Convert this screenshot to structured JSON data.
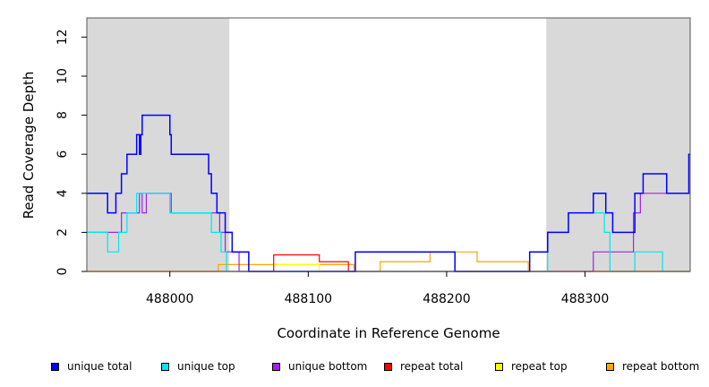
{
  "chart_data": {
    "type": "line",
    "title": "",
    "xlabel": "Coordinate in Reference Genome",
    "ylabel": "Read Coverage Depth",
    "xlim": [
      487940,
      488376
    ],
    "ylim": [
      0,
      13
    ],
    "x_ticks": [
      488000,
      488100,
      488200,
      488300
    ],
    "x_tick_labels": [
      "488000",
      "488100",
      "488200",
      "488300"
    ],
    "y_ticks": [
      0,
      2,
      4,
      6,
      8,
      10,
      12
    ],
    "y_tick_labels": [
      "0",
      "2",
      "4",
      "6",
      "8",
      "10",
      "12"
    ],
    "grid": false,
    "legend_position": "bottom",
    "shaded_regions": [
      {
        "x_start": 487940,
        "x_end": 488043
      },
      {
        "x_start": 488272,
        "x_end": 488376
      }
    ],
    "series": [
      {
        "name": "unique total",
        "color": "#0000ff",
        "style": "step",
        "x": [
          487940,
          487955,
          487961,
          487965,
          487969,
          487976,
          487978,
          487979,
          487980,
          487983,
          488000,
          488001,
          488003,
          488028,
          488030,
          488034,
          488036,
          488040,
          488045,
          488057,
          488134,
          488206,
          488260,
          488273,
          488288,
          488306,
          488315,
          488320,
          488336,
          488342,
          488359,
          488375
        ],
        "y": [
          4,
          3,
          4,
          5,
          6,
          7,
          6,
          7,
          8,
          8,
          7,
          6,
          6,
          5,
          4,
          3,
          3,
          2,
          1,
          0,
          1,
          0,
          1,
          2,
          3,
          4,
          3,
          2,
          4,
          5,
          4,
          6
        ]
      },
      {
        "name": "unique top",
        "color": "#00e5ee",
        "style": "step",
        "x": [
          487940,
          487955,
          487963,
          487969,
          487976,
          487980,
          488000,
          488001,
          488025,
          488030,
          488037,
          488041,
          488050,
          488273,
          488288,
          488306,
          488314,
          488318,
          488336,
          488356,
          488375
        ],
        "y": [
          2,
          1,
          2,
          3,
          4,
          4,
          3,
          3,
          3,
          2,
          1,
          0,
          0,
          2,
          3,
          3,
          2,
          0,
          1,
          0,
          0
        ]
      },
      {
        "name": "unique bottom",
        "color": "#a020f0",
        "style": "step",
        "x": [
          487940,
          487965,
          487978,
          487980,
          487983,
          488000,
          488001,
          488028,
          488036,
          488040,
          488050,
          488306,
          488335,
          488340,
          488375
        ],
        "y": [
          2,
          3,
          4,
          3,
          4,
          4,
          3,
          3,
          2,
          1,
          0,
          1,
          3,
          4,
          4
        ]
      },
      {
        "name": "repeat total",
        "color": "#ff0000",
        "style": "step",
        "x": [
          487940,
          488075,
          488108,
          488129,
          488260
        ],
        "y": [
          0,
          0.85,
          0.5,
          0,
          0
        ]
      },
      {
        "name": "repeat top",
        "color": "#ffff00",
        "style": "step",
        "x": [
          487940,
          488075,
          488108,
          488375
        ],
        "y": [
          0,
          0.35,
          0,
          0
        ]
      },
      {
        "name": "repeat bottom",
        "color": "#ffa500",
        "style": "step",
        "x": [
          487940,
          488035,
          488133,
          488152,
          488188,
          488222,
          488259,
          488261,
          488375
        ],
        "y": [
          0,
          0.35,
          0,
          0.5,
          1,
          0.5,
          0,
          0,
          0
        ]
      }
    ]
  }
}
